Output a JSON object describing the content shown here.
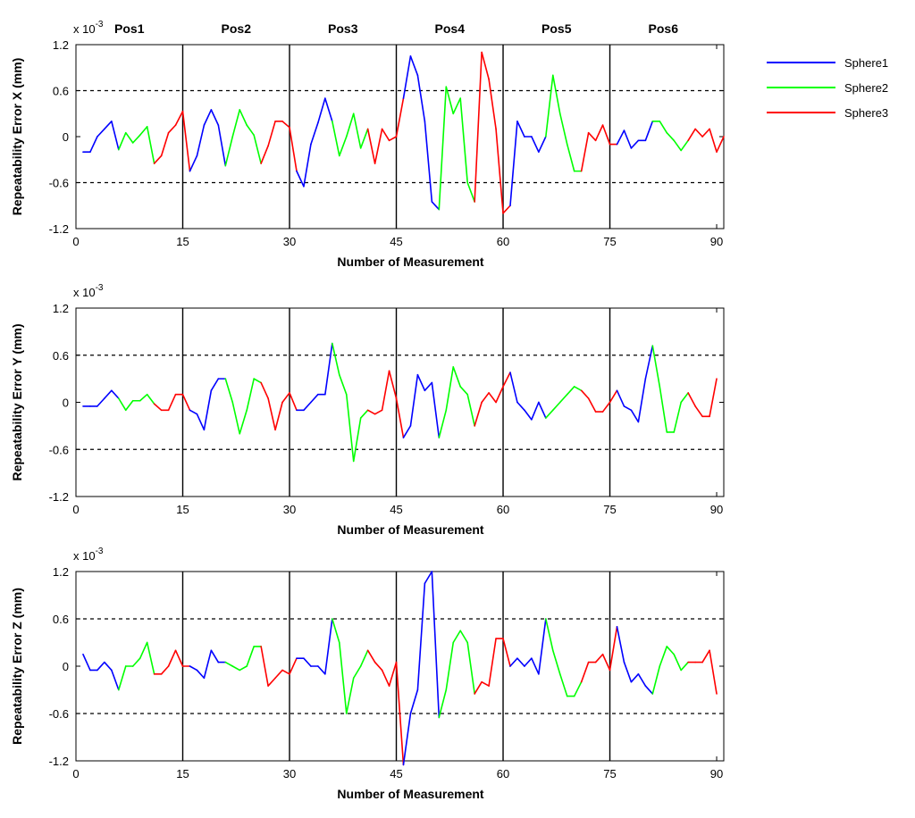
{
  "chart_data": [
    {
      "type": "line",
      "xlabel": "Number of Measurement",
      "ylabel": "Repeatability Error X (mm)",
      "multiplier_label": "x 10",
      "multiplier_exp": "-3",
      "xlim": [
        0,
        91
      ],
      "ylim": [
        -1.2,
        1.2
      ],
      "xticks": [
        "0",
        "15",
        "30",
        "45",
        "60",
        "75",
        "90"
      ],
      "yticks": [
        "-1.2",
        "-0.6",
        "0",
        "0.6",
        "1.2"
      ],
      "dashed_reference_lines": [
        -0.6,
        0.6
      ],
      "position_dividers": [
        15,
        30,
        45,
        60,
        75
      ],
      "position_labels": [
        "Pos1",
        "Pos2",
        "Pos3",
        "Pos4",
        "Pos5",
        "Pos6"
      ],
      "values": [
        -0.2,
        -0.2,
        0,
        0.1,
        0.2,
        -0.17,
        0.05,
        -0.08,
        0.02,
        0.13,
        -0.35,
        -0.25,
        0.05,
        0.15,
        0.33,
        -0.45,
        -0.25,
        0.15,
        0.35,
        0.15,
        -0.38,
        0,
        0.35,
        0.15,
        0.02,
        -0.35,
        -0.12,
        0.2,
        0.2,
        0.12,
        -0.45,
        -0.65,
        -0.1,
        0.18,
        0.5,
        0.2,
        -0.25,
        0,
        0.3,
        -0.15,
        0.1,
        -0.35,
        0.1,
        -0.05,
        0,
        0.5,
        1.05,
        0.8,
        0.2,
        -0.85,
        -0.95,
        0.65,
        0.3,
        0.5,
        -0.6,
        -0.85,
        1.1,
        0.75,
        0.1,
        -1,
        -0.9,
        0.2,
        0,
        0,
        -0.2,
        0,
        0.8,
        0.3,
        -0.1,
        -0.45,
        -0.45,
        0.05,
        -0.05,
        0.15,
        -0.1,
        -0.1,
        0.08,
        -0.15,
        -0.05,
        -0.05,
        0.2,
        0.2,
        0.05,
        -0.05,
        -0.18,
        -0.05,
        0.1,
        0,
        0.1,
        -0.2,
        0
      ]
    },
    {
      "type": "line",
      "xlabel": "Number of Measurement",
      "ylabel": "Repeatability Error Y (mm)",
      "multiplier_label": "x 10",
      "multiplier_exp": "-3",
      "xlim": [
        0,
        91
      ],
      "ylim": [
        -1.2,
        1.2
      ],
      "xticks": [
        "0",
        "15",
        "30",
        "45",
        "60",
        "75",
        "90"
      ],
      "yticks": [
        "-1.2",
        "-0.6",
        "0",
        "0.6",
        "1.2"
      ],
      "dashed_reference_lines": [
        -0.6,
        0.6
      ],
      "position_dividers": [
        15,
        30,
        45,
        60,
        75
      ],
      "values": [
        -0.05,
        -0.05,
        -0.05,
        0.05,
        0.15,
        0.05,
        -0.1,
        0.02,
        0.02,
        0.1,
        -0.02,
        -0.1,
        -0.1,
        0.1,
        0.1,
        -0.1,
        -0.15,
        -0.35,
        0.15,
        0.3,
        0.3,
        0,
        -0.4,
        -0.1,
        0.3,
        0.25,
        0.05,
        -0.35,
        0,
        0.12,
        -0.1,
        -0.1,
        0,
        0.1,
        0.1,
        0.75,
        0.35,
        0.1,
        -0.75,
        -0.2,
        -0.1,
        -0.15,
        -0.1,
        0.4,
        0.05,
        -0.45,
        -0.3,
        0.35,
        0.15,
        0.25,
        -0.45,
        -0.1,
        0.45,
        0.2,
        0.1,
        -0.3,
        0,
        0.12,
        0,
        0.2,
        0.38,
        0,
        -0.1,
        -0.22,
        0,
        -0.2,
        -0.1,
        0,
        0.1,
        0.2,
        0.15,
        0.05,
        -0.12,
        -0.12,
        0,
        0.15,
        -0.05,
        -0.1,
        -0.25,
        0.3,
        0.72,
        0.2,
        -0.38,
        -0.38,
        0,
        0.12,
        -0.05,
        -0.18,
        -0.18,
        0.3
      ]
    },
    {
      "type": "line",
      "xlabel": "Number of Measurement",
      "ylabel": "Repeatability Error Z (mm)",
      "multiplier_label": "x 10",
      "multiplier_exp": "-3",
      "xlim": [
        0,
        91
      ],
      "ylim": [
        -1.2,
        1.2
      ],
      "xticks": [
        "0",
        "15",
        "30",
        "45",
        "60",
        "75",
        "90"
      ],
      "yticks": [
        "-1.2",
        "-0.6",
        "0",
        "0.6",
        "1.2"
      ],
      "dashed_reference_lines": [
        -0.6,
        0.6
      ],
      "position_dividers": [
        15,
        30,
        45,
        60,
        75
      ],
      "values": [
        0.15,
        -0.05,
        -0.05,
        0.05,
        -0.05,
        -0.3,
        0,
        0,
        0.1,
        0.3,
        -0.1,
        -0.1,
        0,
        0.2,
        0,
        0,
        -0.05,
        -0.15,
        0.2,
        0.05,
        0.05,
        0,
        -0.05,
        0,
        0.25,
        0.25,
        -0.25,
        -0.15,
        -0.05,
        -0.1,
        0.1,
        0.1,
        0,
        0,
        -0.1,
        0.6,
        0.3,
        -0.6,
        -0.15,
        0,
        0.2,
        0.05,
        -0.05,
        -0.25,
        0.05,
        -1.25,
        -0.6,
        -0.3,
        1.05,
        1.2,
        -0.65,
        -0.3,
        0.3,
        0.45,
        0.3,
        -0.35,
        -0.2,
        -0.25,
        0.35,
        0.35,
        0,
        0.1,
        0,
        0.1,
        -0.1,
        0.6,
        0.2,
        -0.1,
        -0.38,
        -0.38,
        -0.2,
        0.05,
        0.05,
        0.15,
        -0.05,
        0.5,
        0.05,
        -0.2,
        -0.1,
        -0.25,
        -0.35,
        0,
        0.25,
        0.15,
        -0.05,
        0.05,
        0.05,
        0.05,
        0.2,
        -0.35
      ]
    }
  ],
  "legend": {
    "placement": "outside-right",
    "entries": [
      {
        "name": "Sphere1",
        "color": "#0000ff"
      },
      {
        "name": "Sphere2",
        "color": "#00ff00"
      },
      {
        "name": "Sphere3",
        "color": "#ff0000"
      }
    ]
  },
  "segment_colors_cycle": [
    "#0000ff",
    "#00ff00",
    "#ff0000"
  ],
  "segment_length": 5
}
